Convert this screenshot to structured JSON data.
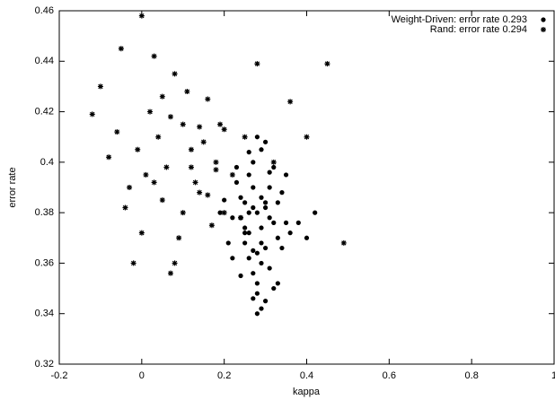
{
  "chart_data": {
    "type": "scatter",
    "xlabel": "kappa",
    "ylabel": "error rate",
    "xlim": [
      -0.2,
      1
    ],
    "ylim": [
      0.32,
      0.46
    ],
    "xticks": [
      -0.2,
      0,
      0.2,
      0.4,
      0.6,
      0.8,
      1
    ],
    "yticks": [
      0.32,
      0.34,
      0.36,
      0.38,
      0.4,
      0.42,
      0.44,
      0.46
    ],
    "legend": "upper right",
    "series": [
      {
        "name": "Weight-Driven: error rate 0.293",
        "color": "#000000",
        "marker": "circle",
        "x": [
          0.28,
          0.25,
          0.31,
          0.27,
          0.3,
          0.22,
          0.33,
          0.26,
          0.29,
          0.24,
          0.35,
          0.28,
          0.32,
          0.21,
          0.27,
          0.3,
          0.25,
          0.34,
          0.29,
          0.26,
          0.31,
          0.23,
          0.28,
          0.36,
          0.27,
          0.3,
          0.24,
          0.33,
          0.29,
          0.26,
          0.38,
          0.2,
          0.28,
          0.31,
          0.25,
          0.27,
          0.32,
          0.29,
          0.35,
          0.22,
          0.3,
          0.26,
          0.28,
          0.34,
          0.24,
          0.31,
          0.27,
          0.29,
          0.4,
          0.19,
          0.33,
          0.26,
          0.3,
          0.28,
          0.25,
          0.32,
          0.27,
          0.42,
          0.23,
          0.29
        ],
        "values": [
          0.38,
          0.372,
          0.39,
          0.365,
          0.384,
          0.378,
          0.37,
          0.395,
          0.36,
          0.386,
          0.376,
          0.352,
          0.398,
          0.368,
          0.382,
          0.345,
          0.374,
          0.388,
          0.405,
          0.362,
          0.378,
          0.392,
          0.348,
          0.372,
          0.4,
          0.366,
          0.355,
          0.384,
          0.342,
          0.38,
          0.376,
          0.385,
          0.41,
          0.358,
          0.368,
          0.39,
          0.35,
          0.374,
          0.395,
          0.362,
          0.382,
          0.404,
          0.34,
          0.366,
          0.378,
          0.396,
          0.356,
          0.386,
          0.37,
          0.38,
          0.352,
          0.372,
          0.408,
          0.364,
          0.384,
          0.376,
          0.346,
          0.38,
          0.398,
          0.368
        ]
      },
      {
        "name": "Rand: error rate 0.294",
        "color": "#000000",
        "marker": "asterisk",
        "x": [
          -0.12,
          -0.08,
          -0.05,
          -0.03,
          0.0,
          0.02,
          0.04,
          0.06,
          0.08,
          0.1,
          0.12,
          0.14,
          0.16,
          0.18,
          0.2,
          -0.1,
          -0.06,
          -0.02,
          0.01,
          0.03,
          0.05,
          0.07,
          0.09,
          0.11,
          0.13,
          0.15,
          0.17,
          0.19,
          0.22,
          0.25,
          0.28,
          0.32,
          0.36,
          0.4,
          0.45,
          0.49,
          -0.04,
          0.0,
          0.05,
          0.08,
          0.12,
          0.16,
          0.2,
          0.24,
          -0.01,
          0.03,
          0.07,
          0.1,
          0.14,
          0.18
        ],
        "values": [
          0.419,
          0.402,
          0.445,
          0.39,
          0.458,
          0.42,
          0.41,
          0.398,
          0.435,
          0.415,
          0.405,
          0.388,
          0.425,
          0.4,
          0.38,
          0.43,
          0.412,
          0.36,
          0.395,
          0.442,
          0.385,
          0.418,
          0.37,
          0.428,
          0.392,
          0.408,
          0.375,
          0.415,
          0.395,
          0.41,
          0.439,
          0.4,
          0.424,
          0.41,
          0.439,
          0.368,
          0.382,
          0.372,
          0.426,
          0.36,
          0.398,
          0.387,
          0.413,
          0.378,
          0.405,
          0.392,
          0.356,
          0.38,
          0.414,
          0.397
        ]
      }
    ]
  }
}
